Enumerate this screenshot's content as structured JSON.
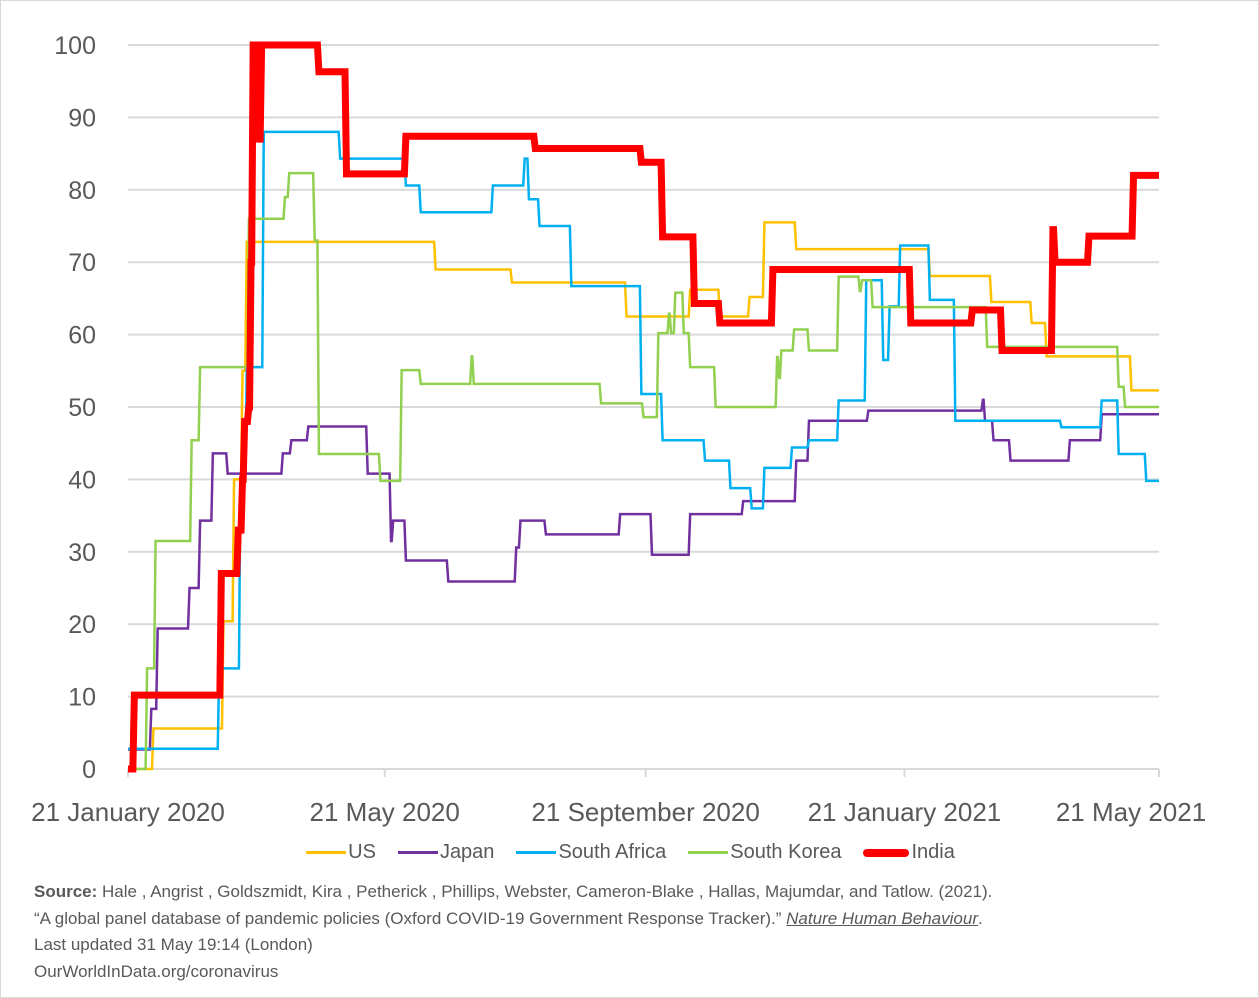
{
  "chart_data": {
    "type": "line",
    "title": "",
    "xlabel": "",
    "ylabel": "",
    "x_unit": "days since 21 January 2020",
    "xlim": [
      0,
      486
    ],
    "ylim": [
      0,
      100
    ],
    "yticks": [
      0,
      10,
      20,
      30,
      40,
      50,
      60,
      70,
      80,
      90,
      100
    ],
    "xticks": [
      {
        "day": 0,
        "label": "21 January 2020"
      },
      {
        "day": 121,
        "label": "21 May 2020"
      },
      {
        "day": 244,
        "label": "21 September 2020"
      },
      {
        "day": 366,
        "label": "21 January 2021"
      },
      {
        "day": 486,
        "label": "21 May 2021"
      }
    ],
    "grid": true,
    "legend_position": "bottom",
    "series": [
      {
        "name": "US",
        "color": "#FFC000",
        "width": 2.5,
        "points": [
          [
            0,
            0
          ],
          [
            12,
            5.6
          ],
          [
            45,
            20.4
          ],
          [
            50,
            40
          ],
          [
            54,
            55
          ],
          [
            56,
            72.8
          ],
          [
            145,
            69
          ],
          [
            181,
            67.2
          ],
          [
            235,
            62.5
          ],
          [
            265,
            66.2
          ],
          [
            279,
            62.5
          ],
          [
            293,
            65.2
          ],
          [
            300,
            75.5
          ],
          [
            315,
            71.8
          ],
          [
            378,
            68.1
          ],
          [
            407,
            64.5
          ],
          [
            426,
            61.6
          ],
          [
            433,
            57
          ],
          [
            473,
            52.3
          ],
          [
            486,
            52.3
          ]
        ]
      },
      {
        "name": "Japan",
        "color": "#7030A0",
        "width": 2.5,
        "points": [
          [
            0,
            2.7
          ],
          [
            11,
            8.3
          ],
          [
            14,
            19.4
          ],
          [
            29,
            25
          ],
          [
            34,
            34.3
          ],
          [
            40,
            43.6
          ],
          [
            47,
            40.8
          ],
          [
            73,
            43.6
          ],
          [
            77,
            45.4
          ],
          [
            85,
            47.3
          ],
          [
            113,
            40.8
          ],
          [
            124,
            31.5
          ],
          [
            125,
            34.3
          ],
          [
            131,
            28.8
          ],
          [
            151,
            25.9
          ],
          [
            183,
            30.6
          ],
          [
            185,
            34.3
          ],
          [
            197,
            32.4
          ],
          [
            232,
            35.2
          ],
          [
            247,
            29.6
          ],
          [
            265,
            35.2
          ],
          [
            290,
            37
          ],
          [
            315,
            42.6
          ],
          [
            321,
            48.1
          ],
          [
            349,
            49.5
          ],
          [
            403,
            51
          ],
          [
            404,
            48.1
          ],
          [
            408,
            45.4
          ],
          [
            416,
            42.6
          ],
          [
            444,
            45.4
          ],
          [
            459,
            49
          ],
          [
            486,
            49
          ]
        ]
      },
      {
        "name": "South Africa",
        "color": "#00B0F0",
        "width": 2.5,
        "points": [
          [
            0,
            2.8
          ],
          [
            43,
            13.9
          ],
          [
            53,
            40
          ],
          [
            56,
            55.5
          ],
          [
            64,
            88
          ],
          [
            100,
            84.3
          ],
          [
            131,
            80.6
          ],
          [
            138,
            76.9
          ],
          [
            172,
            80.6
          ],
          [
            187,
            84.3
          ],
          [
            189,
            78.7
          ],
          [
            194,
            75
          ],
          [
            209,
            66.7
          ],
          [
            242,
            51.8
          ],
          [
            252,
            45.4
          ],
          [
            272,
            42.6
          ],
          [
            284,
            38.8
          ],
          [
            294,
            36
          ],
          [
            300,
            41.6
          ],
          [
            313,
            44.4
          ],
          [
            321,
            45.4
          ],
          [
            335,
            50.9
          ],
          [
            348,
            67.5
          ],
          [
            356,
            56.5
          ],
          [
            359,
            63.9
          ],
          [
            364,
            72.3
          ],
          [
            378,
            64.8
          ],
          [
            390,
            48.1
          ],
          [
            440,
            47.2
          ],
          [
            459,
            50.9
          ],
          [
            467,
            43.5
          ],
          [
            480,
            39.8
          ],
          [
            486,
            39.8
          ]
        ]
      },
      {
        "name": "South Korea",
        "color": "#92D050",
        "width": 2.5,
        "points": [
          [
            0,
            0
          ],
          [
            9,
            13.9
          ],
          [
            13,
            31.5
          ],
          [
            30,
            45.4
          ],
          [
            34,
            55.5
          ],
          [
            57,
            76
          ],
          [
            74,
            79
          ],
          [
            76,
            82.3
          ],
          [
            88,
            73
          ],
          [
            90,
            43.5
          ],
          [
            119,
            39.8
          ],
          [
            129,
            55.1
          ],
          [
            138,
            53.2
          ],
          [
            162,
            57
          ],
          [
            163,
            53.2
          ],
          [
            223,
            50.5
          ],
          [
            243,
            48.6
          ],
          [
            250,
            60.2
          ],
          [
            255,
            62.9
          ],
          [
            256,
            60.2
          ],
          [
            258,
            65.8
          ],
          [
            262,
            60.2
          ],
          [
            265,
            55.5
          ],
          [
            277,
            50
          ],
          [
            306,
            56.9
          ],
          [
            307,
            54
          ],
          [
            308,
            57.8
          ],
          [
            314,
            60.7
          ],
          [
            321,
            57.8
          ],
          [
            335,
            68
          ],
          [
            345,
            66
          ],
          [
            346,
            67.5
          ],
          [
            351,
            63.8
          ],
          [
            405,
            58.3
          ],
          [
            467,
            52.8
          ],
          [
            470,
            50
          ],
          [
            486,
            50
          ]
        ]
      },
      {
        "name": "India",
        "color": "#FF0000",
        "width": 7,
        "points": [
          [
            0,
            0
          ],
          [
            3,
            10.2
          ],
          [
            44,
            27
          ],
          [
            52,
            33
          ],
          [
            54,
            40
          ],
          [
            55,
            48
          ],
          [
            57,
            50
          ],
          [
            58,
            70
          ],
          [
            59,
            100
          ],
          [
            62,
            87
          ],
          [
            63,
            100
          ],
          [
            90,
            96.3
          ],
          [
            103,
            82.2
          ],
          [
            131,
            87.4
          ],
          [
            192,
            85.7
          ],
          [
            242,
            83.8
          ],
          [
            252,
            73.5
          ],
          [
            267,
            64.3
          ],
          [
            279,
            61.6
          ],
          [
            304,
            69
          ],
          [
            369,
            61.6
          ],
          [
            398,
            63.4
          ],
          [
            412,
            57.8
          ],
          [
            436,
            74.5
          ],
          [
            437,
            70
          ],
          [
            453,
            73.6
          ],
          [
            474,
            82
          ],
          [
            486,
            82
          ]
        ]
      }
    ]
  },
  "source": {
    "label": "Source:",
    "line1": " Hale , Angrist , Goldszmidt, Kira , Petherick , Phillips, Webster, Cameron-Blake , Hallas, Majumdar, and Tatlow. (2021).",
    "line2_text": "“A global panel database of pandemic policies (Oxford COVID-19 Government Response Tracker).” ",
    "journal": "Nature Human Behaviour",
    "line2_end": ".",
    "updated": "Last updated 31 May 19:14 (London)",
    "site": "OurWorldInData.org/coronavirus"
  }
}
